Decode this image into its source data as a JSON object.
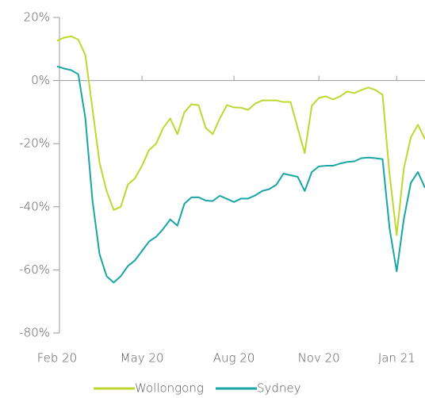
{
  "chart_data": {
    "type": "line",
    "categories": [
      "Feb 20",
      null,
      null,
      null,
      null,
      null,
      null,
      null,
      null,
      null,
      null,
      null,
      "May 20",
      null,
      null,
      null,
      null,
      null,
      null,
      null,
      null,
      null,
      null,
      null,
      null,
      "Aug 20",
      null,
      null,
      null,
      null,
      null,
      null,
      null,
      null,
      null,
      null,
      null,
      "Nov 20",
      null,
      null,
      null,
      null,
      null,
      null,
      null,
      null,
      null,
      null,
      "Jan 21",
      null,
      null,
      null,
      null
    ],
    "series": [
      {
        "name": "Wollongong",
        "color": "#bfd730",
        "values": [
          12.6,
          13.6,
          14,
          13,
          8,
          -9,
          -26,
          -35,
          -41,
          -40,
          -33,
          -31,
          -27,
          -22,
          -20,
          -15,
          -12,
          -17,
          -10,
          -7.5,
          -7.8,
          -15,
          -17,
          -12,
          -7.8,
          -8.5,
          -8.6,
          -9.3,
          -7.3,
          -6.3,
          -6.3,
          -6.3,
          -6.8,
          -6.8,
          -15,
          -23,
          -8,
          -5.5,
          -5,
          -6,
          -5,
          -3.5,
          -4,
          -3,
          -2.2,
          -3,
          -4.5,
          -30,
          -49,
          -28,
          -18,
          -14,
          -18.6
        ]
      },
      {
        "name": "Sydney",
        "color": "#1aa5a5",
        "values": [
          4.5,
          3.8,
          3.3,
          2,
          -12,
          -38,
          -55,
          -62,
          -64,
          -62,
          -58.8,
          -57,
          -54,
          -51,
          -49.5,
          -47,
          -44,
          -46,
          -39,
          -37,
          -37,
          -38,
          -38.2,
          -36.5,
          -37.5,
          -38.5,
          -37.4,
          -37.4,
          -36.4,
          -35,
          -34.4,
          -33,
          -29.5,
          -30,
          -30.5,
          -35,
          -29,
          -27.2,
          -27,
          -27,
          -26.3,
          -25.8,
          -25.6,
          -24.6,
          -24.4,
          -24.6,
          -24.9,
          -47,
          -60.5,
          -44,
          -32.4,
          -29,
          -34
        ]
      }
    ],
    "ylim": [
      -80,
      20
    ],
    "yticks": [
      {
        "value": -80,
        "label": "-80%"
      },
      {
        "value": -60,
        "label": "-60%"
      },
      {
        "value": -40,
        "label": "-40%"
      },
      {
        "value": -20,
        "label": "-20%"
      },
      {
        "value": 0,
        "label": "0%"
      },
      {
        "value": 20,
        "label": "20%"
      }
    ],
    "legend": "bottom"
  }
}
